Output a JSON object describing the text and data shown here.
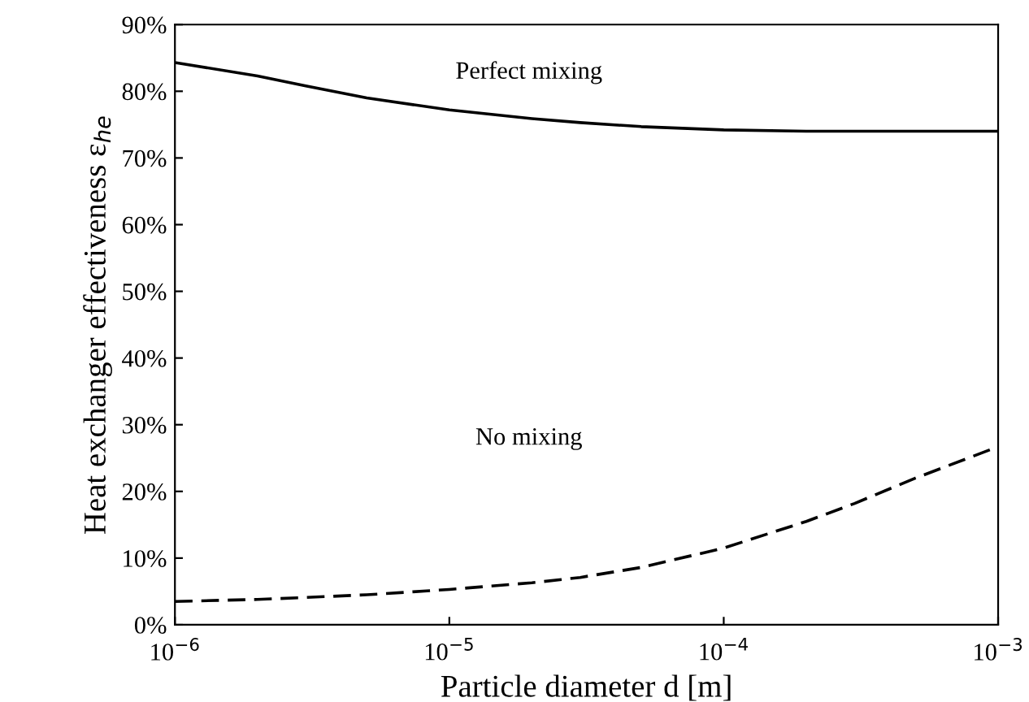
{
  "chart_data": {
    "type": "line",
    "xlabel": "Particle diameter d [m]",
    "ylabel": "Heat exchanger effectiveness ε$_{he}$",
    "log": "x",
    "xlim": [
      1e-06,
      0.001
    ],
    "xticks": [
      {
        "value": 1e-06,
        "label": "10$^{−6}$"
      },
      {
        "value": 1e-05,
        "label": "10$^{−5}$"
      },
      {
        "value": 0.0001,
        "label": "10$^{−4}$"
      },
      {
        "value": 0.001,
        "label": "10$^{−3}$"
      }
    ],
    "ylim": [
      0,
      90
    ],
    "yticks": [
      {
        "value": 0,
        "label": "0%"
      },
      {
        "value": 10,
        "label": "10%"
      },
      {
        "value": 20,
        "label": "20%"
      },
      {
        "value": 30,
        "label": "30%"
      },
      {
        "value": 40,
        "label": "40%"
      },
      {
        "value": 50,
        "label": "50%"
      },
      {
        "value": 60,
        "label": "60%"
      },
      {
        "value": 70,
        "label": "70%"
      },
      {
        "value": 80,
        "label": "80%"
      },
      {
        "value": 90,
        "label": "90%"
      }
    ],
    "grid": false,
    "legend": false,
    "marker": "none",
    "series": [
      {
        "color": "#000000",
        "line_style": "solid",
        "x": [
          1e-06,
          2e-06,
          3e-06,
          5e-06,
          1e-05,
          2e-05,
          3e-05,
          5e-05,
          0.0001,
          0.0002,
          0.0003,
          0.0005,
          0.001
        ],
        "values": [
          84.3,
          82.3,
          80.8,
          79.0,
          77.2,
          75.9,
          75.3,
          74.7,
          74.2,
          74.0,
          74.0,
          74.0,
          74.0
        ]
      },
      {
        "color": "#000000",
        "line_style": "dashed",
        "x": [
          1e-06,
          2e-06,
          3e-06,
          5e-06,
          1e-05,
          2e-05,
          3e-05,
          5e-05,
          0.0001,
          0.0002,
          0.0003,
          0.0005,
          0.001
        ],
        "values": [
          3.5,
          3.8,
          4.1,
          4.5,
          5.3,
          6.3,
          7.1,
          8.6,
          11.5,
          15.5,
          18.2,
          22.0,
          26.7
        ]
      }
    ],
    "annotations": [
      "Perfect mixing",
      "No mixing"
    ]
  }
}
